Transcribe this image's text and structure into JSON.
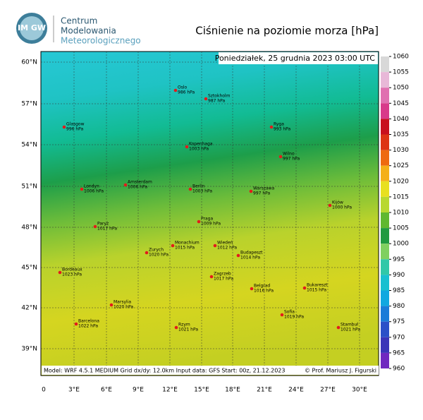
{
  "header": {
    "logo": "IM GW",
    "org_lines": [
      "Centrum",
      "Modelowania",
      "Meteorologicznego"
    ],
    "title": "Ciśnienie na poziomie morza [hPa]"
  },
  "timestamp": "Poniedziałek, 25 grudnia 2023 03:00 UTC",
  "lat_labels": [
    "60°N",
    "57°N",
    "54°N",
    "51°N",
    "48°N",
    "45°N",
    "42°N",
    "39°N"
  ],
  "lon_labels": [
    "0",
    "3°E",
    "6°E",
    "9°E",
    "12°E",
    "15°E",
    "18°E",
    "21°E",
    "24°E",
    "27°E",
    "30°E"
  ],
  "colorbar": {
    "ticks": [
      1060,
      1055,
      1050,
      1045,
      1040,
      1035,
      1030,
      1025,
      1020,
      1015,
      1010,
      1005,
      1000,
      995,
      990,
      985,
      980,
      975,
      970,
      965,
      960
    ]
  },
  "cities": [
    {
      "name": "Glasgow",
      "pressure": "996 hPa"
    },
    {
      "name": "Londyn",
      "pressure": "1006 hPa"
    },
    {
      "name": "Amsterdam",
      "pressure": "1006 hPa"
    },
    {
      "name": "Oslo",
      "pressure": "986 hPa"
    },
    {
      "name": "Sztokholm",
      "pressure": "987 hPa"
    },
    {
      "name": "Kopenhaga",
      "pressure": "1003 hPa"
    },
    {
      "name": "Ryga",
      "pressure": "993 hPa"
    },
    {
      "name": "Wilno",
      "pressure": "997 hPa"
    },
    {
      "name": "Berlin",
      "pressure": "1003 hPa"
    },
    {
      "name": "Warszawa",
      "pressure": "997 hPa"
    },
    {
      "name": "Kijów",
      "pressure": "1000 hPa"
    },
    {
      "name": "Paryż",
      "pressure": "1017 hPa"
    },
    {
      "name": "Praga",
      "pressure": "1009 hPa"
    },
    {
      "name": "Monachium",
      "pressure": "1015 hPa"
    },
    {
      "name": "Wiedeń",
      "pressure": "1012 hPa"
    },
    {
      "name": "Budapeszt",
      "pressure": "1014 hPa"
    },
    {
      "name": "Zurych",
      "pressure": "1020 hPa"
    },
    {
      "name": "Bordeaux",
      "pressure": "1023 hPa"
    },
    {
      "name": "Zagrzeb",
      "pressure": "1017 hPa"
    },
    {
      "name": "Belgrad",
      "pressure": "1016 hPa"
    },
    {
      "name": "Bukareszt",
      "pressure": "1015 hPa"
    },
    {
      "name": "Marsylia",
      "pressure": "1020 hPa"
    },
    {
      "name": "Sofia",
      "pressure": "1019 hPa"
    },
    {
      "name": "Barcelona",
      "pressure": "1022 hPa"
    },
    {
      "name": "Rzym",
      "pressure": "1021 hPa"
    },
    {
      "name": "Stambuł",
      "pressure": "1021 hPa"
    }
  ],
  "footer": {
    "model": "Model: WRF 4.5.1 MEDIUM   Grid dx/dy: 12.0km   Input data: GFS   Start: 00z, 21.12.2023",
    "credit": "© Prof. Mariusz J. Figurski"
  }
}
